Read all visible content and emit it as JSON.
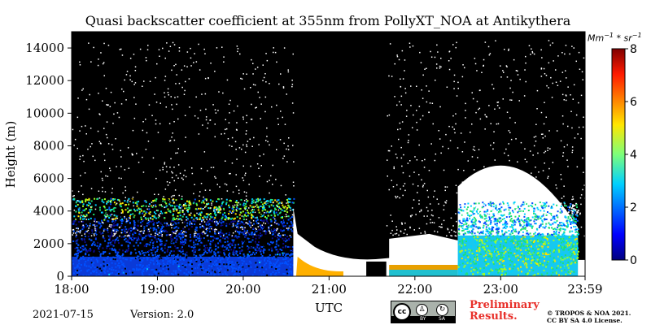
{
  "chart_data": {
    "type": "heatmap",
    "title": "Quasi backscatter coefficient at 355nm from PollyXT_NOA at Antikythera",
    "xlabel": "UTC",
    "ylabel": "Height (m)",
    "x_ticks": [
      "18:00",
      "19:00",
      "20:00",
      "21:00",
      "22:00",
      "23:00",
      "23:59"
    ],
    "y_ticks": [
      0,
      2000,
      4000,
      6000,
      8000,
      10000,
      12000,
      14000
    ],
    "ylim": [
      0,
      15000
    ],
    "colorbar": {
      "unit_base": "Mm",
      "unit_exp1": "−1",
      "unit_mid": " * sr",
      "unit_exp2": "−1",
      "ticks": [
        0,
        2,
        4,
        6,
        8
      ],
      "range": [
        0,
        8
      ],
      "colormap": "jet",
      "colors": [
        "#0a0a90",
        "#0050ff",
        "#00d0ff",
        "#20e070",
        "#a0ff20",
        "#ffe000",
        "#ff8000",
        "#ff2000",
        "#c00000"
      ]
    },
    "background_color": "#000000",
    "regions": [
      {
        "time": "18:00–20:35",
        "fill": "dense aerosol layer",
        "top_m": 4500,
        "value_range": [
          0,
          5
        ]
      },
      {
        "time": "20:35–21:30",
        "fill": "low cloud / no signal above",
        "top_m": 1000
      },
      {
        "time": "21:42–22:30",
        "fill": "low cloud",
        "top_m": 2400
      },
      {
        "time": "22:30–23:55",
        "fill": "aerosol layer",
        "top_m": 4800,
        "value_range": [
          0,
          5
        ]
      }
    ]
  },
  "footer": {
    "date": "2021-07-15",
    "version": "Version: 2.0",
    "preliminary": "Preliminary Results.",
    "copyright_line1": "© TROPOS & NOA 2021.",
    "copyright_line2": "CC BY SA 4.0 License."
  },
  "license_badge": {
    "cc": "cc",
    "by": "BY",
    "sa": "SA"
  }
}
